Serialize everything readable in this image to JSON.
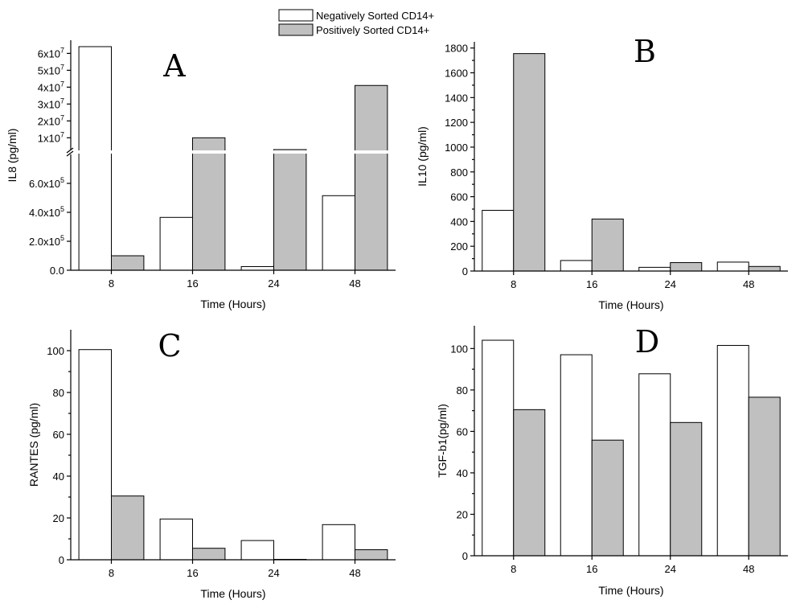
{
  "legend": {
    "negative_label": "Negatively Sorted CD14+",
    "positive_label": "Positively Sorted CD14+",
    "negative_color": "#ffffff",
    "positive_color": "#c0c0c0"
  },
  "chart_data": [
    {
      "type": "bar",
      "panel": "A",
      "categories": [
        "8",
        "16",
        "24",
        "48"
      ],
      "series": [
        {
          "name": "Negatively Sorted CD14+",
          "values": [
            65000000,
            365000,
            25000,
            515000
          ]
        },
        {
          "name": "Positively Sorted CD14+",
          "values": [
            100000,
            10000000,
            3000000,
            41000000
          ]
        }
      ],
      "xlabel": "Time (Hours)",
      "ylabel": "IL8 (pg/ml)",
      "broken_axis": true,
      "lower_ylim": [
        0,
        800000
      ],
      "upper_ylim": [
        0,
        70000000
      ],
      "lower_ticks": [
        "0.0",
        "2.0x10^5",
        "4.0x10^5",
        "6.0x10^5"
      ],
      "upper_ticks": [
        "1x10^7",
        "2x10^7",
        "3x10^7",
        "4x10^7",
        "5x10^7",
        "6x10^7"
      ],
      "sup_tick_values": [
        0,
        200000,
        400000,
        600000
      ],
      "upper_tick_values": [
        10000000,
        20000000,
        30000000,
        40000000,
        50000000,
        60000000
      ]
    },
    {
      "type": "bar",
      "panel": "B",
      "categories": [
        "8",
        "16",
        "24",
        "48"
      ],
      "series": [
        {
          "name": "Negatively Sorted CD14+",
          "values": [
            490,
            85,
            30,
            72
          ]
        },
        {
          "name": "Positively Sorted CD14+",
          "values": [
            1755,
            420,
            68,
            37
          ]
        }
      ],
      "xlabel": "Time (Hours)",
      "ylabel": "IL10 (pg/ml)",
      "ylim": [
        0,
        1850
      ],
      "yticks": [
        0,
        200,
        400,
        600,
        800,
        1000,
        1200,
        1400,
        1600,
        1800
      ]
    },
    {
      "type": "bar",
      "panel": "C",
      "categories": [
        "8",
        "16",
        "24",
        "48"
      ],
      "series": [
        {
          "name": "Negatively Sorted CD14+",
          "values": [
            100.5,
            19.5,
            9.2,
            16.8
          ]
        },
        {
          "name": "Positively Sorted CD14+",
          "values": [
            30.5,
            5.5,
            0.2,
            4.8
          ]
        }
      ],
      "xlabel": "Time (Hours)",
      "ylabel": "RANTES (pg/ml)",
      "ylim": [
        0,
        110
      ],
      "yticks": [
        0,
        20,
        40,
        60,
        80,
        100
      ]
    },
    {
      "type": "bar",
      "panel": "D",
      "categories": [
        "8",
        "16",
        "24",
        "48"
      ],
      "series": [
        {
          "name": "Negatively Sorted CD14+",
          "values": [
            104,
            97,
            87.8,
            101.5
          ]
        },
        {
          "name": "Positively Sorted CD14+",
          "values": [
            70.5,
            55.8,
            64.3,
            76.5
          ]
        }
      ],
      "xlabel": "Time (Hours)",
      "ylabel": "TGF-b1(pg/ml)",
      "ylim": [
        0,
        111
      ],
      "yticks": [
        0,
        20,
        40,
        60,
        80,
        100
      ]
    }
  ]
}
